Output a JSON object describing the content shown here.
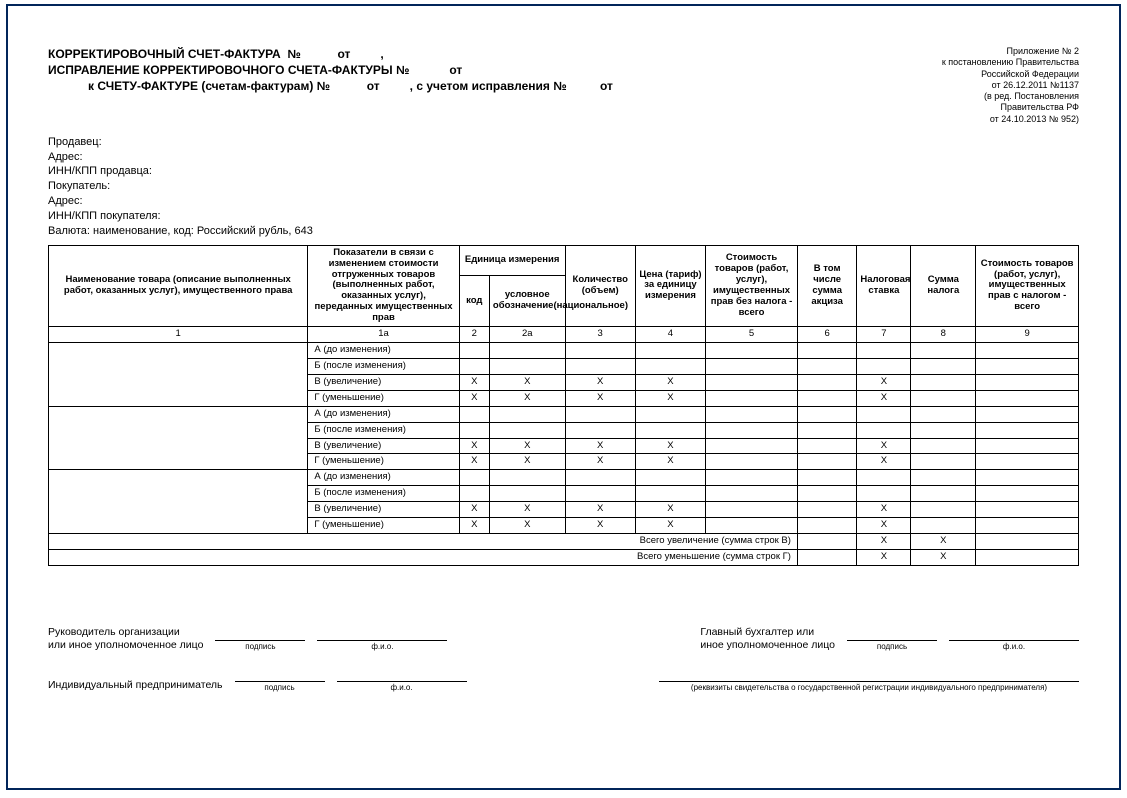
{
  "colors": {
    "border": "#01255a",
    "text": "#000000",
    "bg": "#ffffff"
  },
  "title": {
    "l1a": "КОРРЕКТИРОВОЧНЫЙ СЧЕТ-ФАКТУРА  №",
    "l1b": "от",
    "comma": ",",
    "l2a": "ИСПРАВЛЕНИЕ КОРРЕКТИРОВОЧНОГО СЧЕТА-ФАКТУРЫ №",
    "l2b": "от",
    "l3a": "к СЧЕТУ-ФАКТУРЕ (счетам-фактурам) №",
    "l3b": "от",
    "l3c": ", с учетом исправления №",
    "l3d": "от"
  },
  "appendix": {
    "l1": "Приложение № 2",
    "l2": "к постановлению Правительства",
    "l3": "Российской Федерации",
    "l4": "от 26.12.2011 №1137",
    "l5": "(в ред. Постановления",
    "l6": "Правительства РФ",
    "l7": "от 24.10.2013 № 952)"
  },
  "fields": {
    "seller": "Продавец:",
    "addr1": "Адрес:",
    "inn_seller": "ИНН/КПП продавца:",
    "buyer": "Покупатель:",
    "addr2": "Адрес:",
    "inn_buyer": "ИНН/КПП покупателя:",
    "currency": "Валюта: наименование, код: Российский рубль, 643"
  },
  "table": {
    "headers": {
      "name": "Наименование товара (описание выполненных работ, оказанных услуг), имущественного права",
      "indicators": "Показатели в связи с изменением стоимости отгруженных товаров (выполненных работ, оказанных услуг), переданных имущественных прав",
      "unit": "Единица измерения",
      "unit_code": "код",
      "unit_sym": "условное обозначение(национальное)",
      "qty": "Количество (объем)",
      "price": "Цена (тариф) за единицу измерения",
      "cost_no_tax": "Стоимость товаров (работ, услуг), имущественных прав без налога - всего",
      "excise": "В том числе сумма акциза",
      "rate": "Налоговая ставка",
      "tax": "Сумма налога",
      "cost_tax": "Стоимость товаров (работ, услуг), имущественных прав с налогом - всего"
    },
    "colnums": [
      "1",
      "1а",
      "2",
      "2а",
      "3",
      "4",
      "5",
      "6",
      "7",
      "8",
      "9"
    ],
    "rowLabels": {
      "a": "А (до изменения)",
      "b": "Б (после изменения)",
      "v": "В (увеличение)",
      "g": "Г (уменьшение)"
    },
    "x": "Х",
    "totals": {
      "inc": "Всего увеличение (сумма строк В)",
      "dec": "Всего уменьшение (сумма строк Г)"
    }
  },
  "signatures": {
    "head": "Руководитель организации\nили иное уполномоченное лицо",
    "accountant": "Главный бухгалтер или\nиное уполномоченное лицо",
    "ip": "Индивидуальный предприниматель",
    "sign": "подпись",
    "fio": "ф.и.о.",
    "ip_note": "(реквизиты свидетельства о государственной регистрации индивидуального предпринимателя)"
  }
}
